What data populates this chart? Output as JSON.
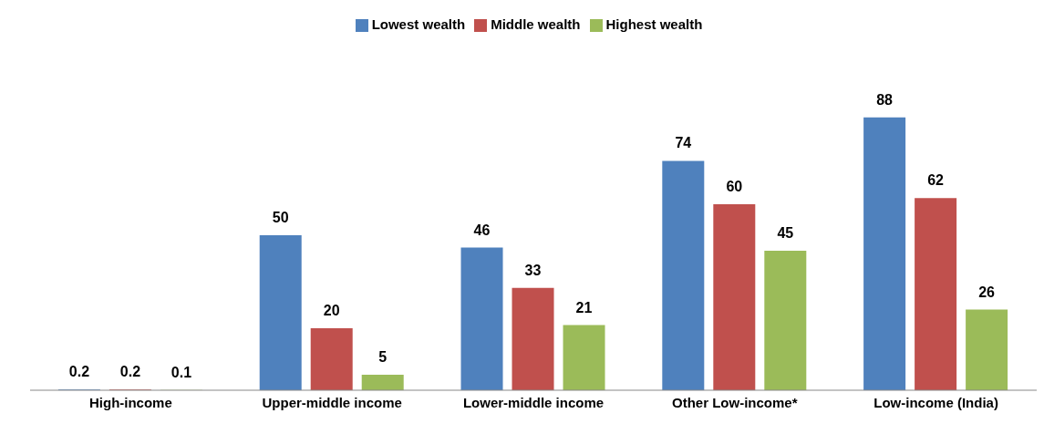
{
  "chart_data": {
    "type": "bar",
    "categories": [
      "High-income",
      "Upper-middle income",
      "Lower-middle income",
      "Other Low-income*",
      "Low-income (India)"
    ],
    "series": [
      {
        "name": "Lowest wealth",
        "color": "#4f81bd",
        "values": [
          0.2,
          50,
          46,
          74,
          88
        ]
      },
      {
        "name": "Middle wealth",
        "color": "#c0504d",
        "values": [
          0.2,
          20,
          33,
          60,
          62
        ]
      },
      {
        "name": "Highest wealth",
        "color": "#9bbb59",
        "values": [
          0.1,
          5,
          21,
          45,
          26
        ]
      }
    ],
    "data_labels": true,
    "legend": "top",
    "grid": false
  }
}
